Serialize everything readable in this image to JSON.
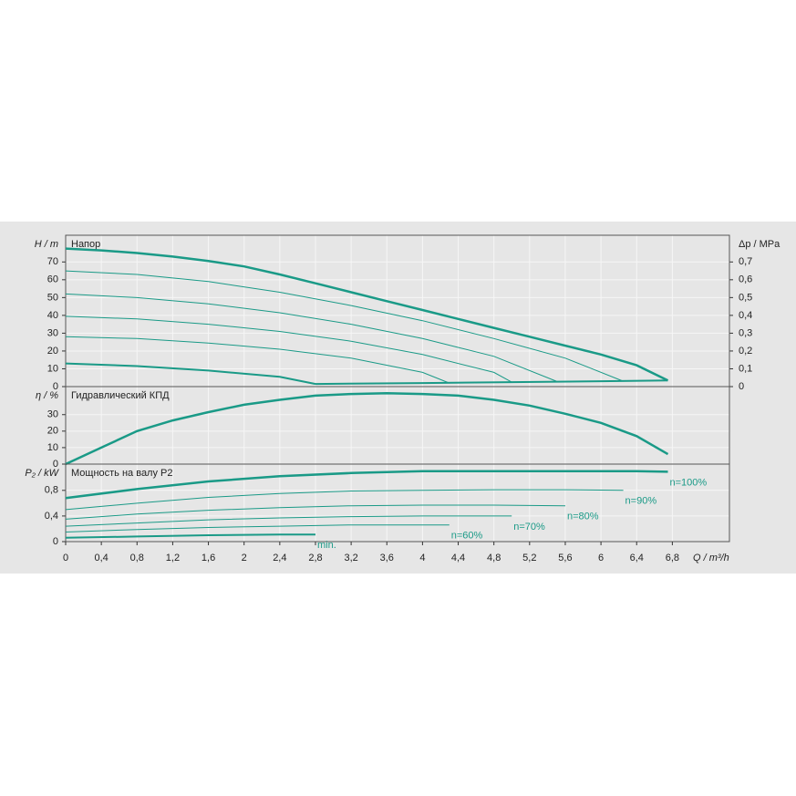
{
  "chart_data": [
    {
      "type": "line",
      "title": "Напор",
      "y_label": "H / m",
      "y2_label": "Δp / MPa",
      "xlim": [
        0,
        7.44
      ],
      "ylim": [
        0,
        85
      ],
      "yticks": [
        0,
        10,
        20,
        30,
        40,
        50,
        60,
        70
      ],
      "y2lim": [
        0,
        0.85
      ],
      "y2ticks": [
        0,
        {
          "value": 0.1,
          "label": "0,1"
        },
        {
          "value": 0.2,
          "label": "0,2"
        },
        {
          "value": 0.3,
          "label": "0,3"
        },
        {
          "value": 0.4,
          "label": "0,4"
        },
        {
          "value": 0.5,
          "label": "0,5"
        },
        {
          "value": 0.6,
          "label": "0,6"
        },
        {
          "value": 0.7,
          "label": "0,7"
        }
      ],
      "grid": true,
      "series": [
        {
          "color": "#1a9a87",
          "width": 2.5,
          "x": [
            0,
            0.4,
            0.8,
            1.2,
            1.6,
            2,
            2.4,
            2.8,
            3.2,
            3.6,
            4,
            4.4,
            4.8,
            5.2,
            5.6,
            6,
            6.4,
            6.75
          ],
          "values": [
            77.5,
            76.5,
            75,
            73,
            70.5,
            67.5,
            63,
            58,
            53,
            48,
            43,
            38,
            33,
            28,
            23,
            18,
            12,
            3.5
          ]
        },
        {
          "color": "#1a9a87",
          "width": 1,
          "x": [
            0,
            0.8,
            1.6,
            2.4,
            3.2,
            4,
            4.8,
            5.6,
            6.25
          ],
          "values": [
            65,
            63,
            59,
            53,
            45.5,
            37,
            27,
            16,
            3
          ]
        },
        {
          "color": "#1a9a87",
          "width": 1,
          "x": [
            0,
            0.8,
            1.6,
            2.4,
            3.2,
            4,
            4.8,
            5.5
          ],
          "values": [
            52,
            50,
            46.5,
            41.5,
            35,
            27,
            17,
            3
          ]
        },
        {
          "color": "#1a9a87",
          "width": 1,
          "x": [
            0,
            0.8,
            1.6,
            2.4,
            3.2,
            4,
            4.8,
            5
          ],
          "values": [
            39.5,
            38,
            35,
            31,
            25.5,
            18,
            8,
            2.5
          ]
        },
        {
          "color": "#1a9a87",
          "width": 1,
          "x": [
            0,
            0.8,
            1.6,
            2.4,
            3.2,
            4,
            4.3
          ],
          "values": [
            28,
            27,
            24.5,
            21,
            16,
            8,
            2
          ]
        },
        {
          "color": "#1a9a87",
          "width": 2,
          "x": [
            0,
            0.8,
            1.6,
            2.4,
            2.8
          ],
          "values": [
            13,
            11.5,
            9,
            5.5,
            1.5
          ]
        },
        {
          "color": "#1a9a87",
          "width": 2,
          "x": [
            2.8,
            4,
            5,
            6,
            6.75
          ],
          "values": [
            1.5,
            2,
            2.5,
            3,
            3.5
          ]
        }
      ]
    },
    {
      "type": "line",
      "title": "Гидравлический КПД",
      "y_label": "η / %",
      "xlim": [
        0,
        7.44
      ],
      "ylim": [
        0,
        47
      ],
      "yticks": [
        0,
        10,
        20,
        30
      ],
      "grid": true,
      "series": [
        {
          "color": "#1a9a87",
          "width": 2.5,
          "x": [
            0,
            0.4,
            0.8,
            1.2,
            1.6,
            2,
            2.4,
            2.8,
            3.2,
            3.6,
            4,
            4.4,
            4.8,
            5.2,
            5.6,
            6,
            6.4,
            6.75
          ],
          "values": [
            0,
            10,
            20,
            26.5,
            31.5,
            36,
            39,
            41.5,
            42.5,
            43,
            42.5,
            41.5,
            39,
            35.5,
            30.5,
            25,
            17,
            6
          ]
        }
      ]
    },
    {
      "type": "line",
      "title": "Мощность на валу P2",
      "y_label": "P₂ / kW",
      "x_label": "Q / m³/h",
      "xlim": [
        0,
        7.44
      ],
      "ylim": [
        0,
        1.21
      ],
      "yticks": [
        0,
        {
          "value": 0.4,
          "label": "0,4"
        },
        {
          "value": 0.8,
          "label": "0,8"
        }
      ],
      "xticks": [
        0,
        {
          "value": 0.4,
          "label": "0,4"
        },
        {
          "value": 0.8,
          "label": "0,8"
        },
        {
          "value": 1.2,
          "label": "1,2"
        },
        {
          "value": 1.6,
          "label": "1,6"
        },
        2,
        {
          "value": 2.4,
          "label": "2,4"
        },
        {
          "value": 2.8,
          "label": "2,8"
        },
        {
          "value": 3.2,
          "label": "3,2"
        },
        {
          "value": 3.6,
          "label": "3,6"
        },
        4,
        {
          "value": 4.4,
          "label": "4,4"
        },
        {
          "value": 4.8,
          "label": "4,8"
        },
        {
          "value": 5.2,
          "label": "5,2"
        },
        {
          "value": 5.6,
          "label": "5,6"
        },
        6,
        {
          "value": 6.4,
          "label": "6,4"
        },
        {
          "value": 6.8,
          "label": "6,8"
        }
      ],
      "grid": true,
      "series": [
        {
          "name": "n=100%",
          "color": "#1a9a87",
          "width": 2.5,
          "x": [
            0,
            0.8,
            1.6,
            2.4,
            3.2,
            4,
            4.8,
            5.6,
            6.4,
            6.75
          ],
          "values": [
            0.68,
            0.82,
            0.94,
            1.02,
            1.07,
            1.1,
            1.1,
            1.1,
            1.1,
            1.09
          ]
        },
        {
          "name": "n=90%",
          "color": "#1a9a87",
          "width": 1,
          "x": [
            0,
            0.8,
            1.6,
            2.4,
            3.2,
            4,
            4.8,
            5.6,
            6.25
          ],
          "values": [
            0.5,
            0.6,
            0.69,
            0.75,
            0.79,
            0.8,
            0.81,
            0.81,
            0.8
          ]
        },
        {
          "name": "n=80%",
          "color": "#1a9a87",
          "width": 1,
          "x": [
            0,
            0.8,
            1.6,
            2.4,
            3.2,
            4,
            4.8,
            5.6
          ],
          "values": [
            0.35,
            0.43,
            0.49,
            0.53,
            0.56,
            0.57,
            0.57,
            0.56
          ]
        },
        {
          "name": "n=70%",
          "color": "#1a9a87",
          "width": 1,
          "x": [
            0,
            0.8,
            1.6,
            2.4,
            3.2,
            4,
            5
          ],
          "values": [
            0.24,
            0.29,
            0.34,
            0.37,
            0.39,
            0.4,
            0.4
          ]
        },
        {
          "name": "n=60%",
          "color": "#1a9a87",
          "width": 1,
          "x": [
            0,
            0.8,
            1.6,
            2.4,
            3.2,
            4.3
          ],
          "values": [
            0.15,
            0.19,
            0.22,
            0.24,
            0.26,
            0.26
          ]
        },
        {
          "name": "min.",
          "color": "#1a9a87",
          "width": 2,
          "x": [
            0,
            0.8,
            1.6,
            2.4,
            2.8
          ],
          "values": [
            0.06,
            0.08,
            0.1,
            0.11,
            0.11
          ]
        }
      ]
    }
  ]
}
